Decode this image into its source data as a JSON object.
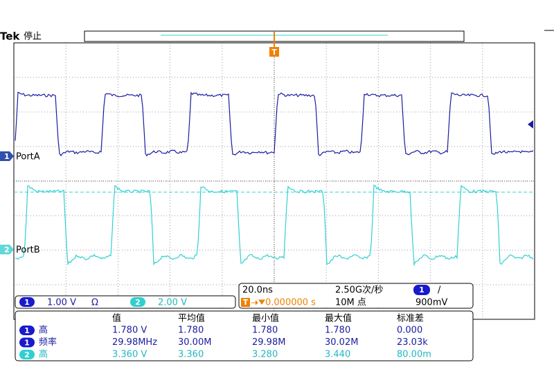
{
  "header": {
    "brand": "Tek",
    "status": "停止"
  },
  "trigger_marker": "T",
  "channels": [
    {
      "number": "1",
      "label": "PortA"
    },
    {
      "number": "2",
      "label": "PortB"
    }
  ],
  "channel_settings": [
    {
      "number": "1",
      "scale": "1.00 V",
      "coupling": "Ω"
    },
    {
      "number": "2",
      "scale": "2.00 V"
    }
  ],
  "timebase": {
    "scale": "20.0ns",
    "sample_rate": "2.50G次/秒",
    "trigger_channel": "1",
    "trigger_slope": "/",
    "trigger_position_marker": "T",
    "trigger_position": "0.000000 s",
    "record_length": "10M 点",
    "trigger_level": "900mV"
  },
  "measurements": {
    "columns": [
      "值",
      "平均值",
      "最小值",
      "最大值",
      "标准差"
    ],
    "rows": [
      {
        "channel": "1",
        "name": "高",
        "cells": [
          "1.780 V",
          "1.780",
          "1.780",
          "1.780",
          "0.000"
        ]
      },
      {
        "channel": "1",
        "name": "频率",
        "cells": [
          "29.98MHz",
          "30.00M",
          "29.98M",
          "30.02M",
          "23.03k"
        ]
      },
      {
        "channel": "2",
        "name": "高",
        "cells": [
          "3.360 V",
          "3.360",
          "3.280",
          "3.440",
          "80.00m"
        ]
      }
    ]
  }
}
